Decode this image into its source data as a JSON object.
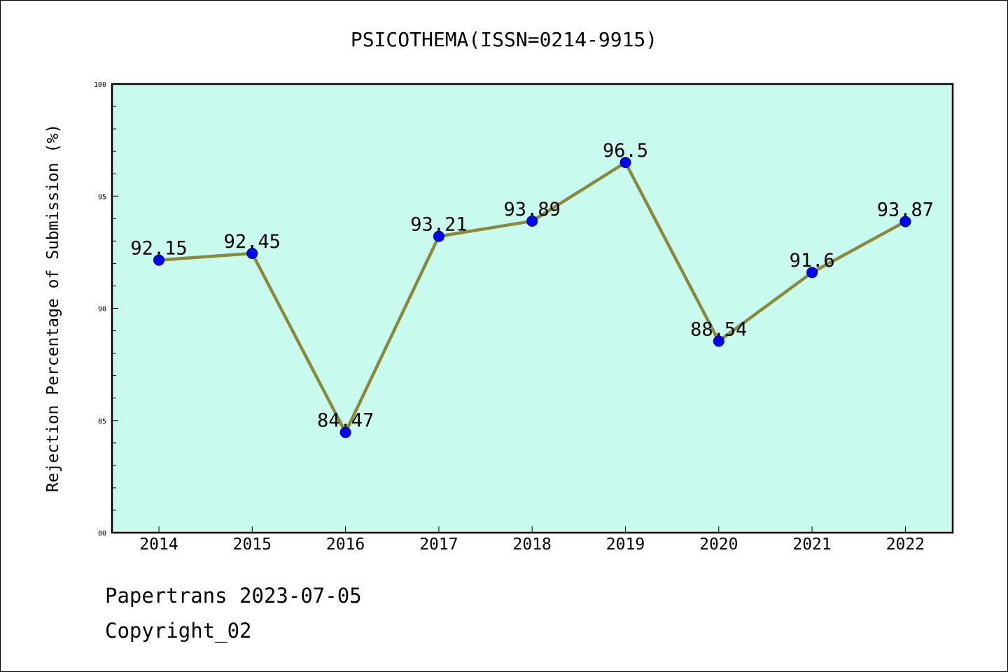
{
  "chart_data": {
    "type": "line",
    "title": "PSICOTHEMA(ISSN=0214-9915)",
    "xlabel": "",
    "ylabel": "Rejection Percentage of Submission (%)",
    "categories": [
      "2014",
      "2015",
      "2016",
      "2017",
      "2018",
      "2019",
      "2020",
      "2021",
      "2022"
    ],
    "series": [
      {
        "values": [
          92.15,
          92.45,
          84.47,
          93.21,
          93.89,
          96.5,
          88.54,
          91.6,
          93.87
        ],
        "labels": [
          "92.15",
          "92.45",
          "84.47",
          "93.21",
          "93.89",
          "96.5",
          "88.54",
          "91.6",
          "93.87"
        ],
        "line_color": "#8b8a3a",
        "marker_color": "#0000ff"
      }
    ],
    "ylim": [
      80,
      100
    ],
    "yticks": [
      "80",
      "85",
      "90",
      "95",
      "100"
    ],
    "grid": false,
    "plot_background": "#c8fbee"
  },
  "footer": {
    "line1": "Papertrans 2023-07-05",
    "line2": "Copyright_02"
  }
}
